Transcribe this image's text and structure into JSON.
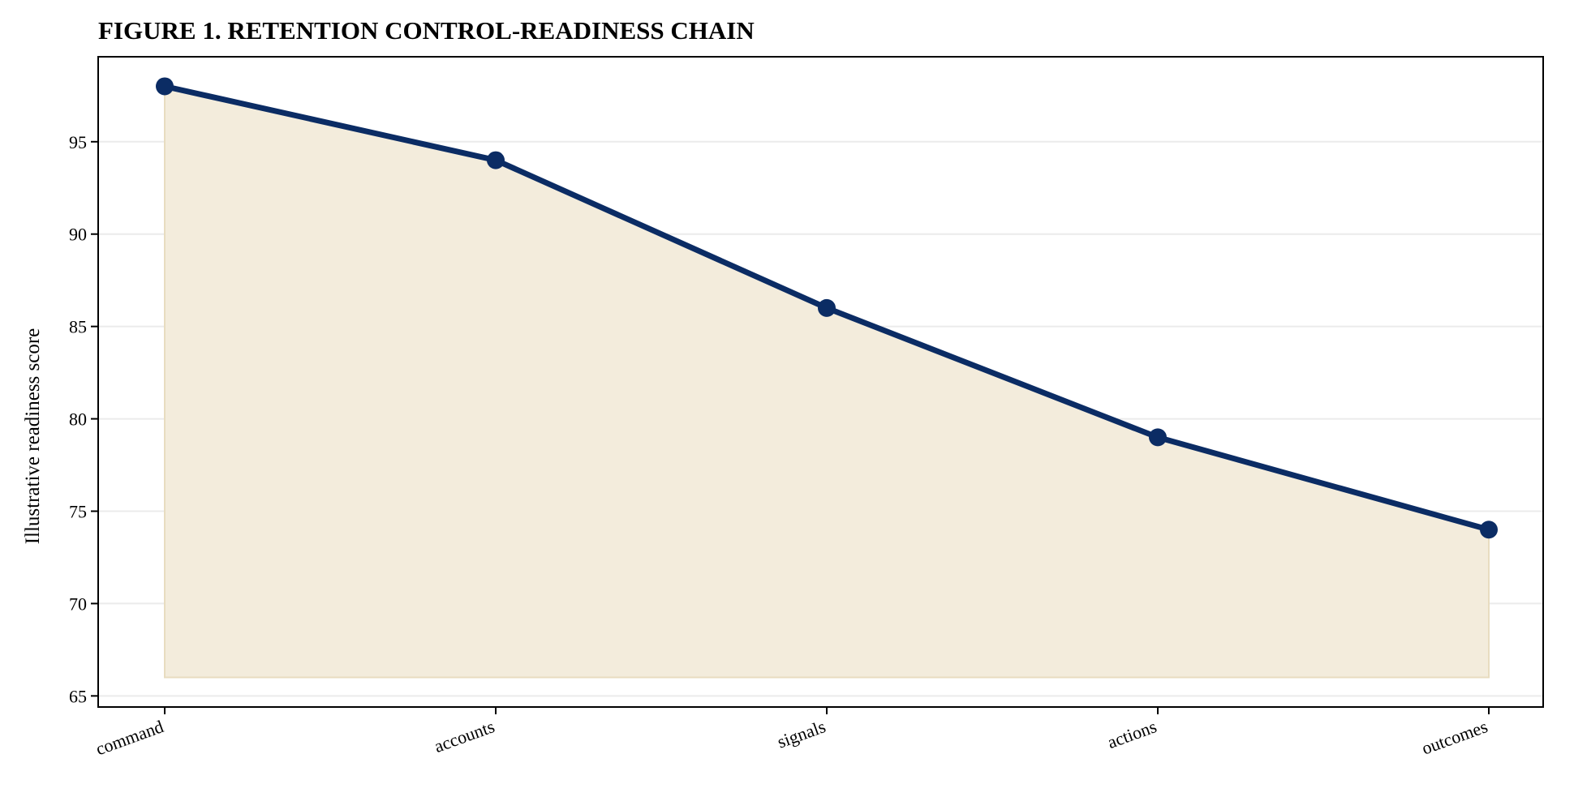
{
  "chart_data": {
    "type": "area",
    "title": "FIGURE 1. RETENTION CONTROL-READINESS CHAIN",
    "xlabel": "",
    "ylabel": "Illustrative readiness score",
    "categories": [
      "command",
      "accounts",
      "signals",
      "actions",
      "outcomes"
    ],
    "series": [
      {
        "values": [
          98,
          94,
          86,
          79,
          74
        ]
      }
    ],
    "fill_baseline": 66,
    "ylim": [
      64.4,
      99.6
    ],
    "yticks": [
      65,
      70,
      75,
      80,
      85,
      90,
      95
    ],
    "grid": "horizontal",
    "colors": {
      "line": "#0b2c64",
      "fill": "#f3ecdc",
      "fill_edge": "#e8dcc0",
      "grid": "#ebebeb",
      "axis": "#000000"
    }
  }
}
